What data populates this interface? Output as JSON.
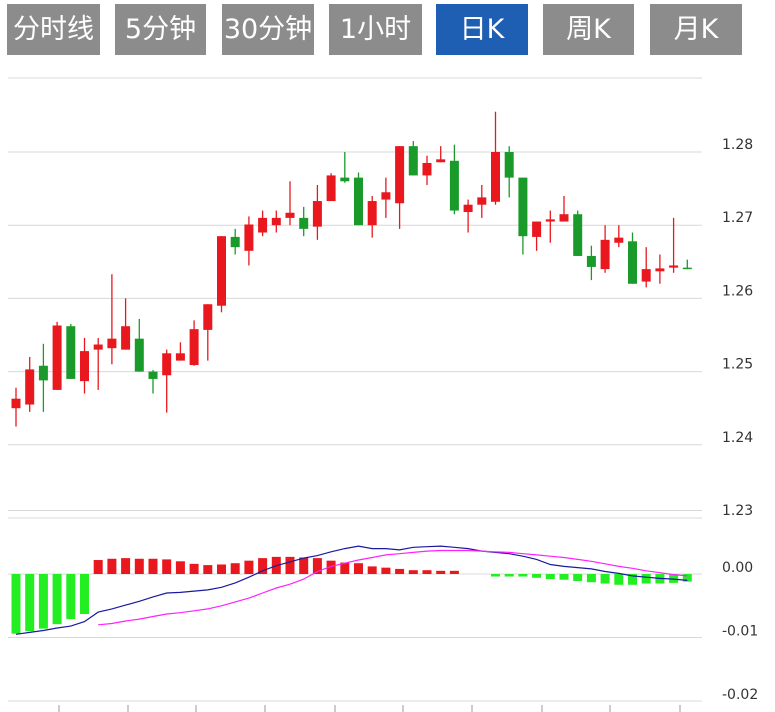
{
  "tabs": [
    {
      "label": "分时线",
      "active": false
    },
    {
      "label": "5分钟",
      "active": false
    },
    {
      "label": "30分钟",
      "active": false
    },
    {
      "label": "1小时",
      "active": false
    },
    {
      "label": "日K",
      "active": true
    },
    {
      "label": "周K",
      "active": false
    },
    {
      "label": "月K",
      "active": false
    }
  ],
  "colors": {
    "up": "#e8181e",
    "down": "#1a9a2a",
    "tab_bg": "#8c8c8c",
    "tab_active_bg": "#1e5fb4",
    "macd_pos": "#e8181e",
    "macd_neg": "#22ee22",
    "dif_line": "#1a1aa0",
    "dea_line": "#ff22ff",
    "grid": "#d8d8d8"
  },
  "chart_data": [
    {
      "type": "candlestick",
      "y_ticks": [
        "1.28",
        "1.27",
        "1.26",
        "1.25",
        "1.24",
        "1.23"
      ],
      "ylim": [
        1.23,
        1.29
      ],
      "candles": [
        [
          1.2463,
          1.245,
          1.2478,
          1.2425,
          "up"
        ],
        [
          1.2503,
          1.2455,
          1.252,
          1.2445,
          "up"
        ],
        [
          1.2488,
          1.2508,
          1.2538,
          1.2445,
          "down"
        ],
        [
          1.2563,
          1.2475,
          1.2568,
          1.2475,
          "up"
        ],
        [
          1.2562,
          1.249,
          1.2565,
          1.249,
          "down"
        ],
        [
          1.2528,
          1.2487,
          1.2546,
          1.247,
          "up"
        ],
        [
          1.2537,
          1.253,
          1.2546,
          1.2475,
          "up"
        ],
        [
          1.2545,
          1.2532,
          1.2633,
          1.251,
          "up"
        ],
        [
          1.2562,
          1.253,
          1.26,
          1.253,
          "up"
        ],
        [
          1.2545,
          1.25,
          1.2572,
          1.25,
          "down"
        ],
        [
          1.25,
          1.249,
          1.2502,
          1.247,
          "down"
        ],
        [
          1.2525,
          1.2495,
          1.253,
          1.2444,
          "up"
        ],
        [
          1.2525,
          1.2515,
          1.254,
          1.2515,
          "up"
        ],
        [
          1.2558,
          1.2509,
          1.257,
          1.2508,
          "up"
        ],
        [
          1.2592,
          1.2557,
          1.2592,
          1.2515,
          "up"
        ],
        [
          1.2685,
          1.259,
          1.2685,
          1.2581,
          "up"
        ],
        [
          1.2684,
          1.267,
          1.2695,
          1.266,
          "down"
        ],
        [
          1.2701,
          1.2665,
          1.2712,
          1.2645,
          "up"
        ],
        [
          1.271,
          1.269,
          1.272,
          1.2685,
          "up"
        ],
        [
          1.271,
          1.27,
          1.272,
          1.269,
          "up"
        ],
        [
          1.2717,
          1.271,
          1.276,
          1.27,
          "up"
        ],
        [
          1.271,
          1.2695,
          1.2725,
          1.2685,
          "down"
        ],
        [
          1.2733,
          1.2698,
          1.2755,
          1.268,
          "up"
        ],
        [
          1.2768,
          1.2733,
          1.2771,
          1.2733,
          "up"
        ],
        [
          1.2765,
          1.276,
          1.28,
          1.2758,
          "down"
        ],
        [
          1.2765,
          1.27,
          1.2772,
          1.27,
          "down"
        ],
        [
          1.2733,
          1.27,
          1.274,
          1.2683,
          "up"
        ],
        [
          1.2745,
          1.2735,
          1.2765,
          1.271,
          "up"
        ],
        [
          1.2808,
          1.273,
          1.2808,
          1.2695,
          "up"
        ],
        [
          1.2808,
          1.2768,
          1.2815,
          1.2768,
          "down"
        ],
        [
          1.2785,
          1.2768,
          1.2795,
          1.2755,
          "up"
        ],
        [
          1.279,
          1.2786,
          1.2808,
          1.2786,
          "up"
        ],
        [
          1.2788,
          1.272,
          1.281,
          1.2715,
          "down"
        ],
        [
          1.2728,
          1.2718,
          1.2735,
          1.269,
          "up"
        ],
        [
          1.2738,
          1.2728,
          1.2755,
          1.271,
          "up"
        ],
        [
          1.28,
          1.2732,
          1.2855,
          1.2728,
          "up"
        ],
        [
          1.28,
          1.2765,
          1.2808,
          1.2738,
          "down"
        ],
        [
          1.2765,
          1.2685,
          1.2765,
          1.266,
          "down"
        ],
        [
          1.2705,
          1.2684,
          1.2705,
          1.2665,
          "up"
        ],
        [
          1.2708,
          1.2705,
          1.272,
          1.2676,
          "up"
        ],
        [
          1.2715,
          1.2705,
          1.274,
          1.2705,
          "up"
        ],
        [
          1.2715,
          1.2658,
          1.272,
          1.2658,
          "down"
        ],
        [
          1.2658,
          1.2643,
          1.2672,
          1.2625,
          "down"
        ],
        [
          1.268,
          1.264,
          1.27,
          1.2635,
          "up"
        ],
        [
          1.2683,
          1.2676,
          1.27,
          1.267,
          "up"
        ],
        [
          1.2678,
          1.262,
          1.269,
          1.262,
          "down"
        ],
        [
          1.264,
          1.2623,
          1.267,
          1.2615,
          "up"
        ],
        [
          1.2641,
          1.2637,
          1.266,
          1.262,
          "up"
        ],
        [
          1.2645,
          1.2642,
          1.271,
          1.2635,
          "up"
        ],
        [
          1.2642,
          1.264,
          1.2653,
          1.264,
          "down"
        ]
      ]
    },
    {
      "type": "bar",
      "y_ticks": [
        "0.00",
        "-0.01",
        "-0.02"
      ],
      "ylim": [
        -0.02,
        0.01
      ],
      "macd": [
        -0.0094,
        -0.009,
        -0.0086,
        -0.0079,
        -0.0071,
        -0.0063,
        0.0022,
        0.0024,
        0.0025,
        0.0024,
        0.0024,
        0.0023,
        0.002,
        0.0016,
        0.0014,
        0.0015,
        0.0017,
        0.0021,
        0.0025,
        0.0027,
        0.0027,
        0.0026,
        0.0025,
        0.0021,
        0.0018,
        0.0017,
        0.0012,
        0.001,
        0.0008,
        0.0006,
        0.0006,
        0.0005,
        0.0005,
        0,
        0,
        -0.0004,
        -0.0004,
        -0.0004,
        -0.0006,
        -0.0008,
        -0.0009,
        -0.0011,
        -0.0013,
        -0.0015,
        -0.0017,
        -0.0017,
        -0.0015,
        -0.0015,
        -0.0014,
        -0.0012
      ],
      "dif": [
        -0.0095,
        -0.0092,
        -0.0089,
        -0.0085,
        -0.0082,
        -0.0075,
        -0.006,
        -0.0055,
        -0.0049,
        -0.0043,
        -0.0036,
        -0.003,
        -0.0029,
        -0.0027,
        -0.0025,
        -0.0021,
        -0.0014,
        -0.0005,
        0.0005,
        0.0013,
        0.0019,
        0.0025,
        0.0029,
        0.0035,
        0.004,
        0.0044,
        0.004,
        0.004,
        0.0038,
        0.0042,
        0.0043,
        0.0044,
        0.0042,
        0.004,
        0.0036,
        0.0034,
        0.0032,
        0.0028,
        0.0023,
        0.0015,
        0.0012,
        0.001,
        0.0008,
        0.0004,
        0.0001,
        -0.0003,
        -0.0005,
        -0.0007,
        -0.0008,
        -0.001
      ],
      "dea": [
        null,
        null,
        null,
        null,
        null,
        null,
        -0.008,
        -0.0078,
        -0.0074,
        -0.0071,
        -0.0067,
        -0.0063,
        -0.0061,
        -0.0058,
        -0.0055,
        -0.005,
        -0.0044,
        -0.0038,
        -0.003,
        -0.0022,
        -0.0016,
        -0.0008,
        0.0004,
        0.0012,
        0.0017,
        0.0022,
        0.0026,
        0.003,
        0.0032,
        0.0034,
        0.0036,
        0.0037,
        0.0037,
        0.0037,
        0.0036,
        0.0035,
        0.0034,
        0.0032,
        0.003,
        0.0028,
        0.0026,
        0.0023,
        0.002,
        0.0016,
        0.0012,
        0.0009,
        0.0005,
        0.0002,
        -0.0001,
        -0.0003
      ]
    }
  ]
}
